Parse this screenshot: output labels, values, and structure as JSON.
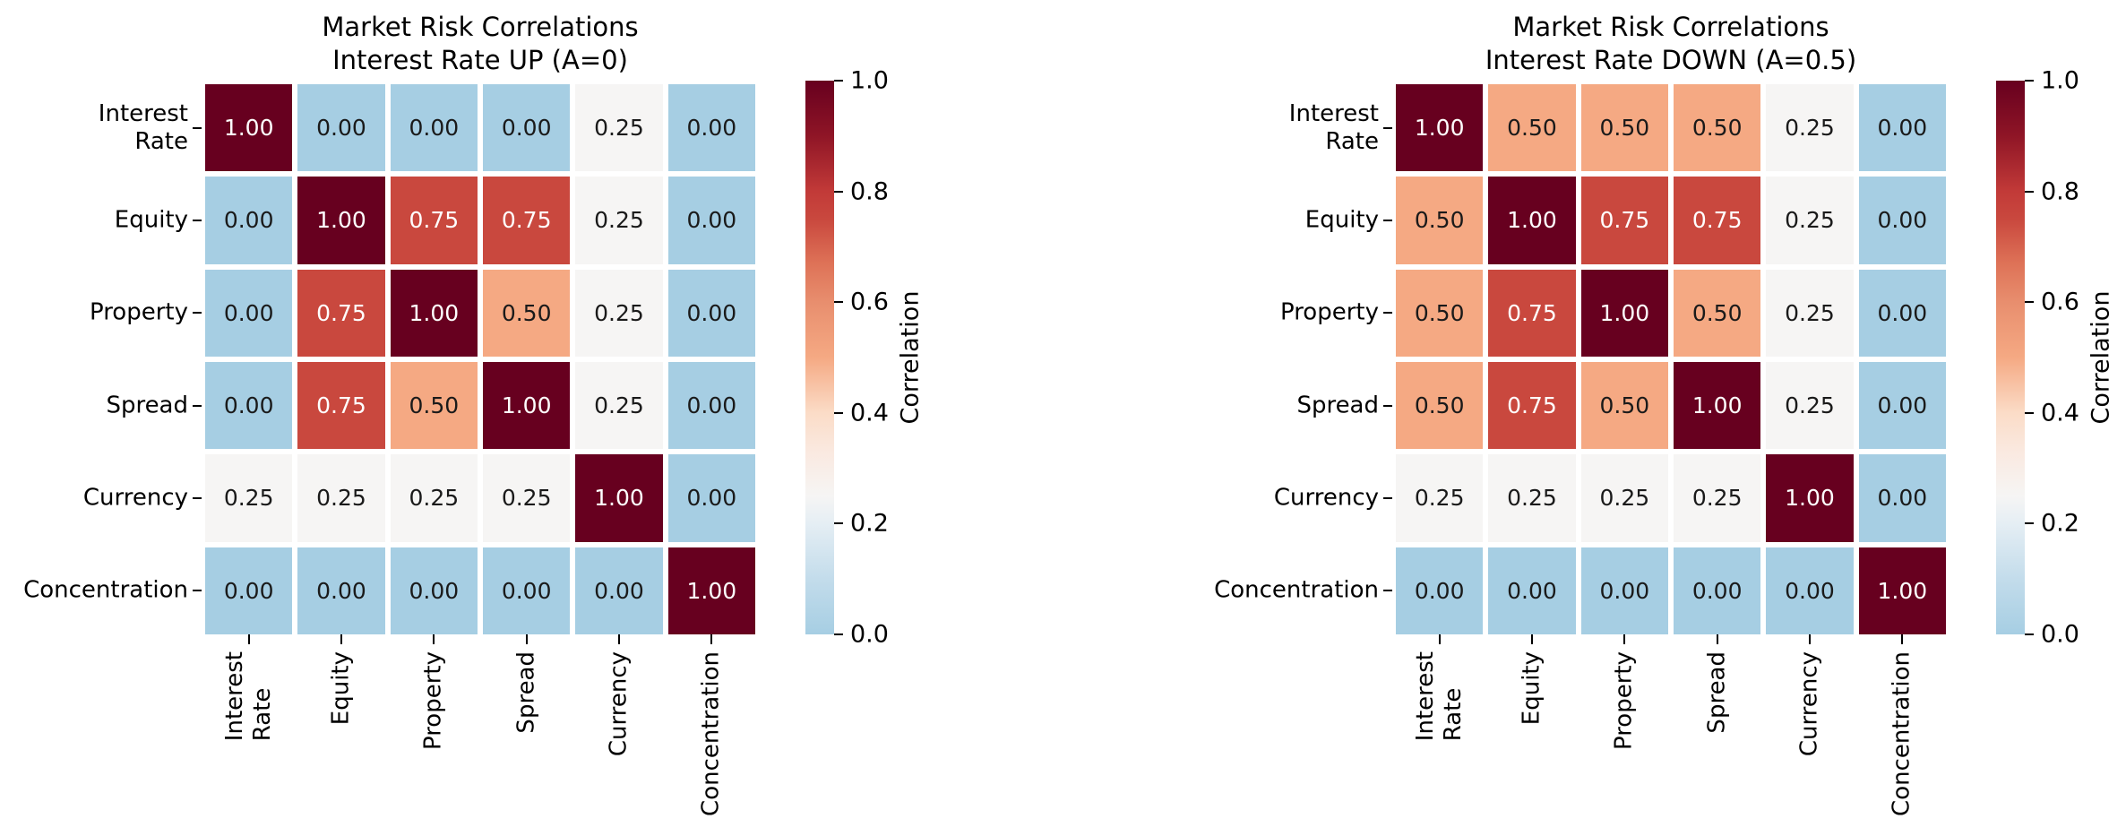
{
  "chart_data": [
    {
      "type": "heatmap",
      "title_line1": "Market Risk Correlations",
      "title_line2": "Interest Rate UP (A=0)",
      "categories": [
        "Interest\nRate",
        "Equity",
        "Property",
        "Spread",
        "Currency",
        "Concentration"
      ],
      "matrix": [
        [
          1.0,
          0.0,
          0.0,
          0.0,
          0.25,
          0.0
        ],
        [
          0.0,
          1.0,
          0.75,
          0.75,
          0.25,
          0.0
        ],
        [
          0.0,
          0.75,
          1.0,
          0.5,
          0.25,
          0.0
        ],
        [
          0.0,
          0.75,
          0.5,
          1.0,
          0.25,
          0.0
        ],
        [
          0.25,
          0.25,
          0.25,
          0.25,
          1.0,
          0.0
        ],
        [
          0.0,
          0.0,
          0.0,
          0.0,
          0.0,
          1.0
        ]
      ],
      "value_format_decimals": 2,
      "colorbar_label": "Correlation",
      "colorbar_ticks": [
        0.0,
        0.2,
        0.4,
        0.6,
        0.8,
        1.0
      ],
      "colorbar_range": [
        0.0,
        1.0
      ],
      "legend_position": "right",
      "grid": false
    },
    {
      "type": "heatmap",
      "title_line1": "Market Risk Correlations",
      "title_line2": "Interest Rate DOWN (A=0.5)",
      "categories": [
        "Interest\nRate",
        "Equity",
        "Property",
        "Spread",
        "Currency",
        "Concentration"
      ],
      "matrix": [
        [
          1.0,
          0.5,
          0.5,
          0.5,
          0.25,
          0.0
        ],
        [
          0.5,
          1.0,
          0.75,
          0.75,
          0.25,
          0.0
        ],
        [
          0.5,
          0.75,
          1.0,
          0.5,
          0.25,
          0.0
        ],
        [
          0.5,
          0.75,
          0.5,
          1.0,
          0.25,
          0.0
        ],
        [
          0.25,
          0.25,
          0.25,
          0.25,
          1.0,
          0.0
        ],
        [
          0.0,
          0.0,
          0.0,
          0.0,
          0.0,
          1.0
        ]
      ],
      "value_format_decimals": 2,
      "colorbar_label": "Correlation",
      "colorbar_ticks": [
        0.0,
        0.2,
        0.4,
        0.6,
        0.8,
        1.0
      ],
      "colorbar_range": [
        0.0,
        1.0
      ],
      "legend_position": "right",
      "grid": false
    }
  ],
  "palette": {
    "cell_colors": {
      "0.00": "#a6cee3",
      "0.25": "#f6f5f4",
      "0.50": "#f5a983",
      "0.75": "#c9483e",
      "1.00": "#67001f"
    },
    "annot_text_dark": "#1a1a1a",
    "annot_text_light": "#ffffff",
    "gradient_stops": [
      [
        0.0,
        "#a6cee3"
      ],
      [
        0.1,
        "#c3dceb"
      ],
      [
        0.2,
        "#e5eef4"
      ],
      [
        0.25,
        "#f6f5f4"
      ],
      [
        0.33,
        "#fae9e0"
      ],
      [
        0.4,
        "#fbdcc7"
      ],
      [
        0.5,
        "#f5a983"
      ],
      [
        0.6,
        "#e88e6e"
      ],
      [
        0.67,
        "#de7257"
      ],
      [
        0.75,
        "#c9483e"
      ],
      [
        0.8,
        "#c23a38"
      ],
      [
        0.9,
        "#8f1526"
      ],
      [
        1.0,
        "#67001f"
      ]
    ]
  }
}
